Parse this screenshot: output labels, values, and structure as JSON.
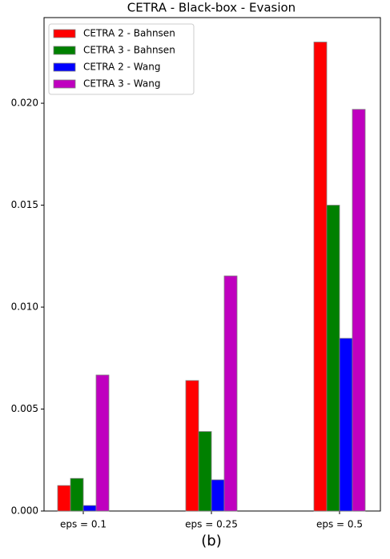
{
  "chart_data": {
    "type": "bar",
    "title": "CETRA - Black-box - Evasion",
    "caption": "(b)",
    "categories": [
      "eps = 0.1",
      "eps = 0.25",
      "eps = 0.5"
    ],
    "series": [
      {
        "name": "CETRA 2 - Bahnsen",
        "color": "#ff0000",
        "values": [
          0.00125,
          0.0064,
          0.023
        ]
      },
      {
        "name": "CETRA 3 - Bahnsen",
        "color": "#008000",
        "values": [
          0.0016,
          0.0039,
          0.015
        ]
      },
      {
        "name": "CETRA 2 - Wang",
        "color": "#0000ff",
        "values": [
          0.00027,
          0.00153,
          0.00847
        ]
      },
      {
        "name": "CETRA 3 - Wang",
        "color": "#bf00bf",
        "values": [
          0.00667,
          0.01153,
          0.0197
        ]
      }
    ],
    "ylim": [
      0,
      0.0242
    ],
    "yticks": [
      {
        "value": 0,
        "label": "0.000"
      },
      {
        "value": 0.005,
        "label": "0.005"
      },
      {
        "value": 0.01,
        "label": "0.010"
      },
      {
        "value": 0.015,
        "label": "0.015"
      },
      {
        "value": 0.02,
        "label": "0.020"
      }
    ],
    "legend": "upper left",
    "grid": false
  }
}
